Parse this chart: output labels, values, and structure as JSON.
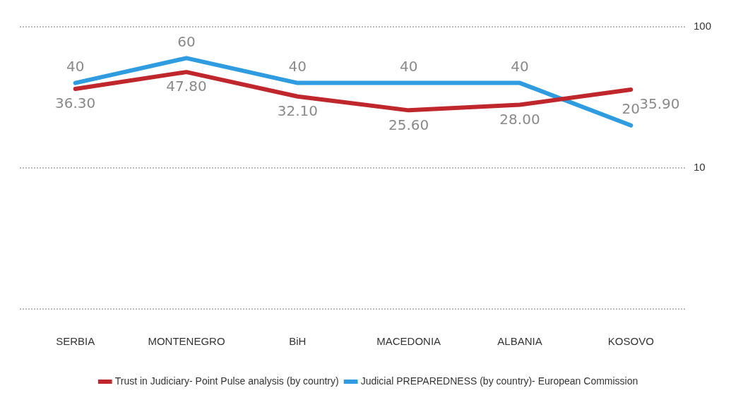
{
  "chart_data": {
    "type": "line",
    "categories": [
      "SERBIA",
      "MONTENEGRO",
      "BiH",
      "MACEDONIA",
      "ALBANIA",
      "KOSOVO"
    ],
    "series": [
      {
        "name": "Trust in Judiciary- Point Pulse analysis (by country)",
        "color": "#c0272d",
        "values": [
          36.3,
          47.8,
          32.1,
          25.6,
          28.0,
          35.9
        ],
        "value_labels": [
          "36.30",
          "47.80",
          "32.10",
          "25.60",
          "28.00",
          "35.90"
        ]
      },
      {
        "name": "Judicial PREPAREDNESS (by country)- European Commission",
        "color": "#2f9be0",
        "values": [
          40,
          60,
          40,
          40,
          40,
          20
        ],
        "value_labels": [
          "40",
          "60",
          "40",
          "40",
          "40",
          "20"
        ]
      }
    ],
    "log": "y",
    "ylim": [
      1,
      100
    ],
    "yticks": [
      {
        "value": 1,
        "label": null
      },
      10,
      100
    ],
    "grid": "y",
    "legend": "bottom",
    "marker": "none"
  }
}
